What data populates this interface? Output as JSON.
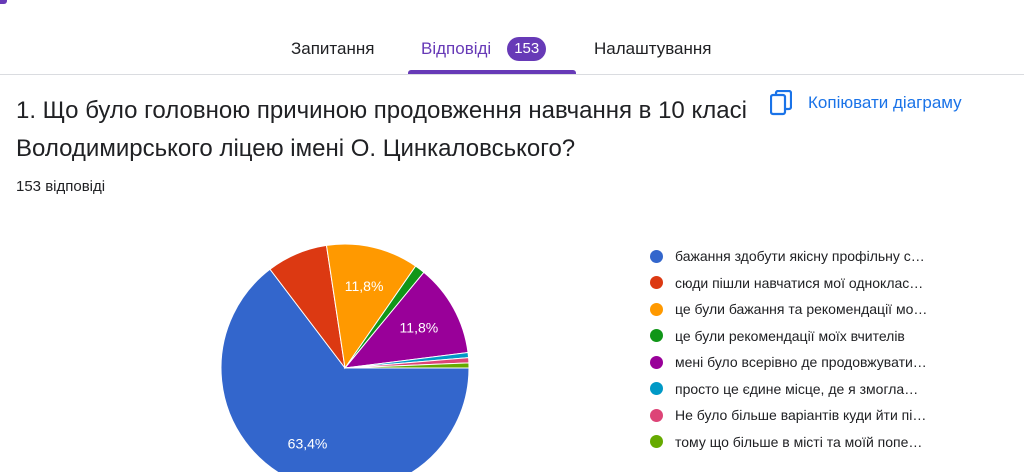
{
  "tabs": [
    {
      "label": "Запитання"
    },
    {
      "label": "Відповіді",
      "badge": "153"
    },
    {
      "label": "Налаштування"
    }
  ],
  "question": {
    "title": "1. Що було головною причиною продовження навчання в 10 класі Володимирського ліцею імені О. Цинкаловського?",
    "copy_label": "Копіювати діаграму",
    "responses": "153 відповіді"
  },
  "chart_data": {
    "type": "pie",
    "categories": [
      "бажання здобути якісну профільну с…",
      "сюди пішли навчатися мої однoклас…",
      "це були бажання та рекомендації мо…",
      "це були рекомендації моїх вчителів",
      "мені було всерівно де продовжувати…",
      "просто це єдине місце, де я змогла…",
      "Не було більше варіантів куди йти пі…",
      "тому що більше в місті та моїй попе…"
    ],
    "values": [
      63.4,
      7.8,
      11.8,
      1.3,
      11.8,
      0.65,
      0.65,
      0.65
    ],
    "data_labels": [
      "63,4%",
      "",
      "11,8%",
      "",
      "11,8%",
      "",
      "",
      ""
    ],
    "colors": [
      "#3366cc",
      "#dc3912",
      "#ff9900",
      "#109618",
      "#990099",
      "#0099c6",
      "#dd4477",
      "#66aa00"
    ],
    "legend_position": "right"
  }
}
